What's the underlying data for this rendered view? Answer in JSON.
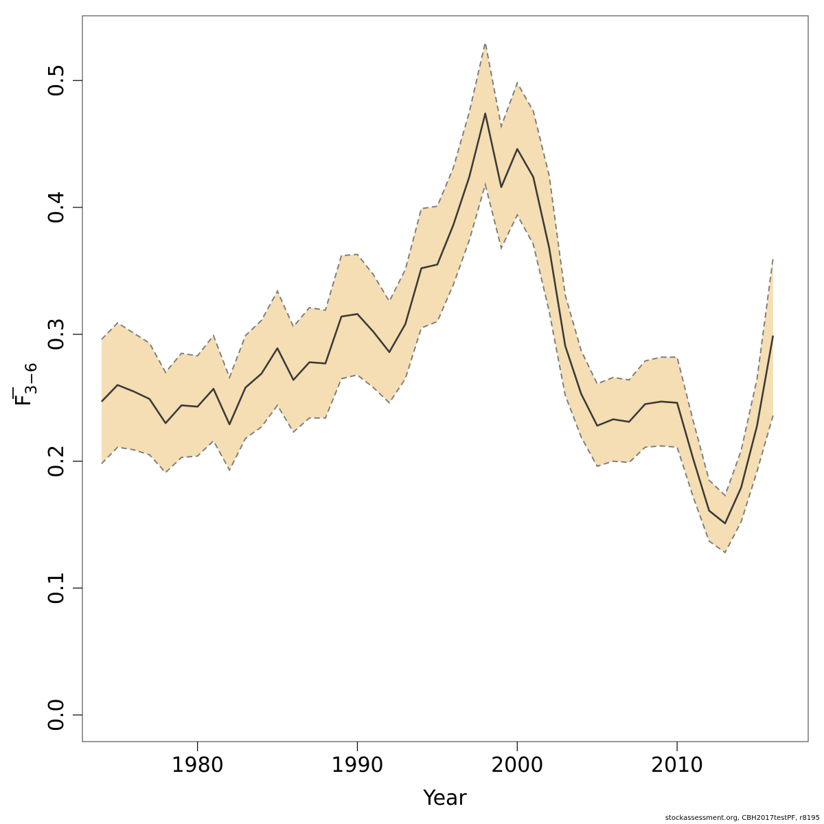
{
  "chart_data": {
    "type": "area",
    "xlabel": "Year",
    "ylabel": {
      "base": "F",
      "subscript": "3−6"
    },
    "xlim": [
      1972.8,
      2018.2
    ],
    "ylim": [
      -0.021,
      0.551
    ],
    "x_ticks": [
      1980,
      1990,
      2000,
      2010
    ],
    "x_tick_labels": [
      "1980",
      "1990",
      "2000",
      "2010"
    ],
    "y_ticks": [
      0.0,
      0.1,
      0.2,
      0.3,
      0.4,
      0.5
    ],
    "y_tick_labels": [
      "0.0",
      "0.1",
      "0.2",
      "0.3",
      "0.4",
      "0.5"
    ],
    "grid": false,
    "colors": {
      "band": "#f5deb3",
      "line": "#3b3b3b",
      "bounds": "#7f7f7f",
      "frame": "#555555"
    },
    "x": [
      1974,
      1975,
      1976,
      1977,
      1978,
      1979,
      1980,
      1981,
      1982,
      1983,
      1984,
      1985,
      1986,
      1987,
      1988,
      1989,
      1990,
      1991,
      1992,
      1993,
      1994,
      1995,
      1996,
      1997,
      1998,
      1999,
      2000,
      2001,
      2002,
      2003,
      2004,
      2005,
      2006,
      2007,
      2008,
      2009,
      2010,
      2011,
      2012,
      2013,
      2014,
      2015,
      2016
    ],
    "series": [
      {
        "role": "estimate",
        "values": [
          0.247,
          0.26,
          0.255,
          0.249,
          0.23,
          0.244,
          0.243,
          0.257,
          0.229,
          0.258,
          0.269,
          0.289,
          0.264,
          0.278,
          0.277,
          0.314,
          0.316,
          0.302,
          0.286,
          0.308,
          0.352,
          0.355,
          0.386,
          0.424,
          0.474,
          0.416,
          0.446,
          0.424,
          0.368,
          0.291,
          0.253,
          0.228,
          0.233,
          0.231,
          0.245,
          0.247,
          0.246,
          0.202,
          0.161,
          0.151,
          0.179,
          0.228,
          0.299
        ]
      },
      {
        "role": "upper",
        "values": [
          0.296,
          0.309,
          0.301,
          0.293,
          0.27,
          0.285,
          0.283,
          0.299,
          0.266,
          0.299,
          0.311,
          0.334,
          0.306,
          0.321,
          0.319,
          0.362,
          0.363,
          0.347,
          0.326,
          0.351,
          0.399,
          0.401,
          0.431,
          0.475,
          0.53,
          0.464,
          0.498,
          0.476,
          0.425,
          0.331,
          0.287,
          0.261,
          0.266,
          0.264,
          0.279,
          0.282,
          0.282,
          0.232,
          0.185,
          0.173,
          0.208,
          0.265,
          0.36
        ]
      },
      {
        "role": "lower",
        "values": [
          0.198,
          0.211,
          0.209,
          0.205,
          0.191,
          0.203,
          0.204,
          0.216,
          0.193,
          0.218,
          0.227,
          0.244,
          0.223,
          0.234,
          0.234,
          0.265,
          0.268,
          0.258,
          0.246,
          0.265,
          0.305,
          0.31,
          0.339,
          0.374,
          0.418,
          0.368,
          0.394,
          0.371,
          0.318,
          0.252,
          0.219,
          0.196,
          0.2,
          0.199,
          0.211,
          0.212,
          0.211,
          0.172,
          0.137,
          0.128,
          0.152,
          0.192,
          0.236
        ]
      }
    ]
  },
  "footer": "stockassessment.org, CBH2017testPF, r8195"
}
